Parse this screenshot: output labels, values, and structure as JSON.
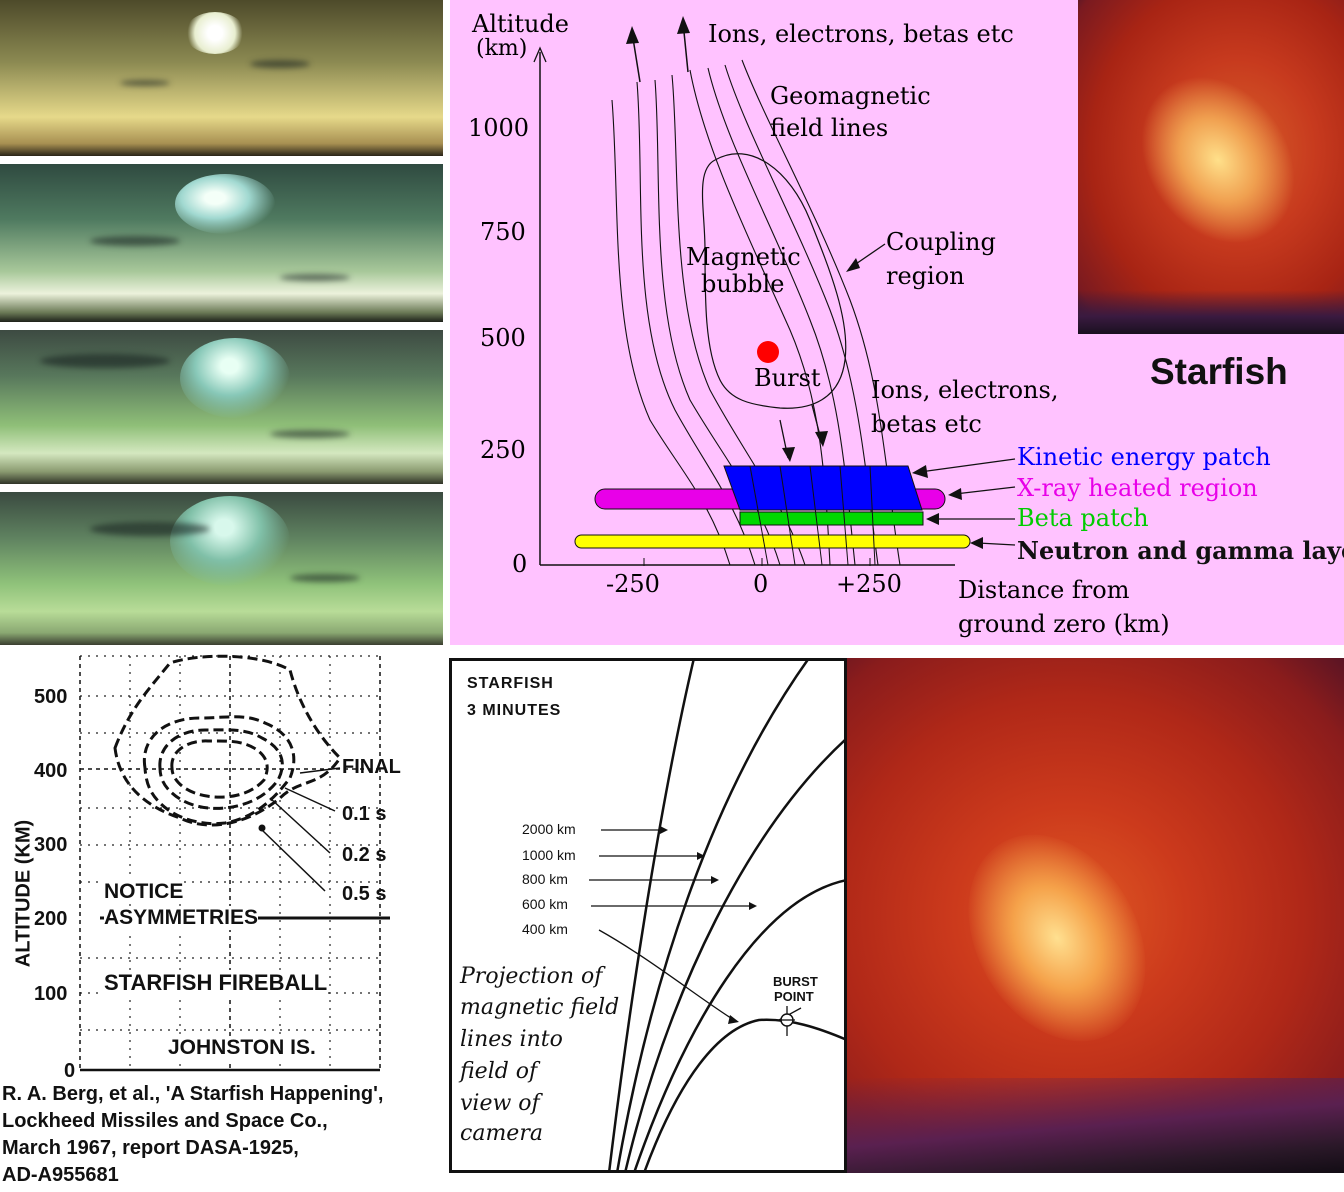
{
  "diagram": {
    "y_axis_label_1": "Altitude",
    "y_axis_label_2": "(km)",
    "y_ticks": [
      "1000",
      "750",
      "500",
      "250",
      "0"
    ],
    "x_ticks": [
      "-250",
      "0",
      "+250"
    ],
    "x_axis_label_1": "Distance from",
    "x_axis_label_2": "ground zero (km)",
    "top_label": "Ions, electrons, betas etc",
    "geomagnetic_1": "Geomagnetic",
    "geomagnetic_2": "field lines",
    "bubble_1": "Magnetic",
    "bubble_2": "bubble",
    "coupling_1": "Coupling",
    "coupling_2": "region",
    "burst": "Burst",
    "ions2_1": "Ions, electrons,",
    "ions2_2": "betas etc",
    "layers": [
      {
        "label": "Kinetic energy patch",
        "color": "#0000ff"
      },
      {
        "label": "X-ray heated region",
        "color": "#ff00ff"
      },
      {
        "label": "Beta patch",
        "color": "#00dd00"
      },
      {
        "label": "Neutron and gamma layer",
        "color": "#111111"
      }
    ]
  },
  "starfish_label": "Starfish",
  "fireball_plot": {
    "y_axis_label": "ALTITUDE (KM)",
    "y_ticks": [
      "500",
      "400",
      "300",
      "200",
      "100",
      "0"
    ],
    "final": "FINAL",
    "t1": "0.1 s",
    "t2": "0.2 s",
    "t3": "0.5 s",
    "notice_1": "NOTICE",
    "notice_2": "ASYMMETRIES",
    "title": "STARFISH FIREBALL",
    "location": "JOHNSTON IS."
  },
  "citation": [
    "R. A. Berg, et al., 'A Starfish Happening',",
    "Lockheed  Missiles and Space Co.,",
    "March 1967, report DASA-1925,",
    "AD-A955681"
  ],
  "projection": {
    "title_1": "STARFISH",
    "title_2": "3  MINUTES",
    "labels": [
      "2000 km",
      "1000 km",
      "800 km",
      "600 km",
      "400 km"
    ],
    "burst_1": "BURST",
    "burst_2": "POINT",
    "caption": [
      "Projection of",
      "magnetic field",
      "lines into",
      "field of",
      "view of",
      "camera"
    ]
  }
}
